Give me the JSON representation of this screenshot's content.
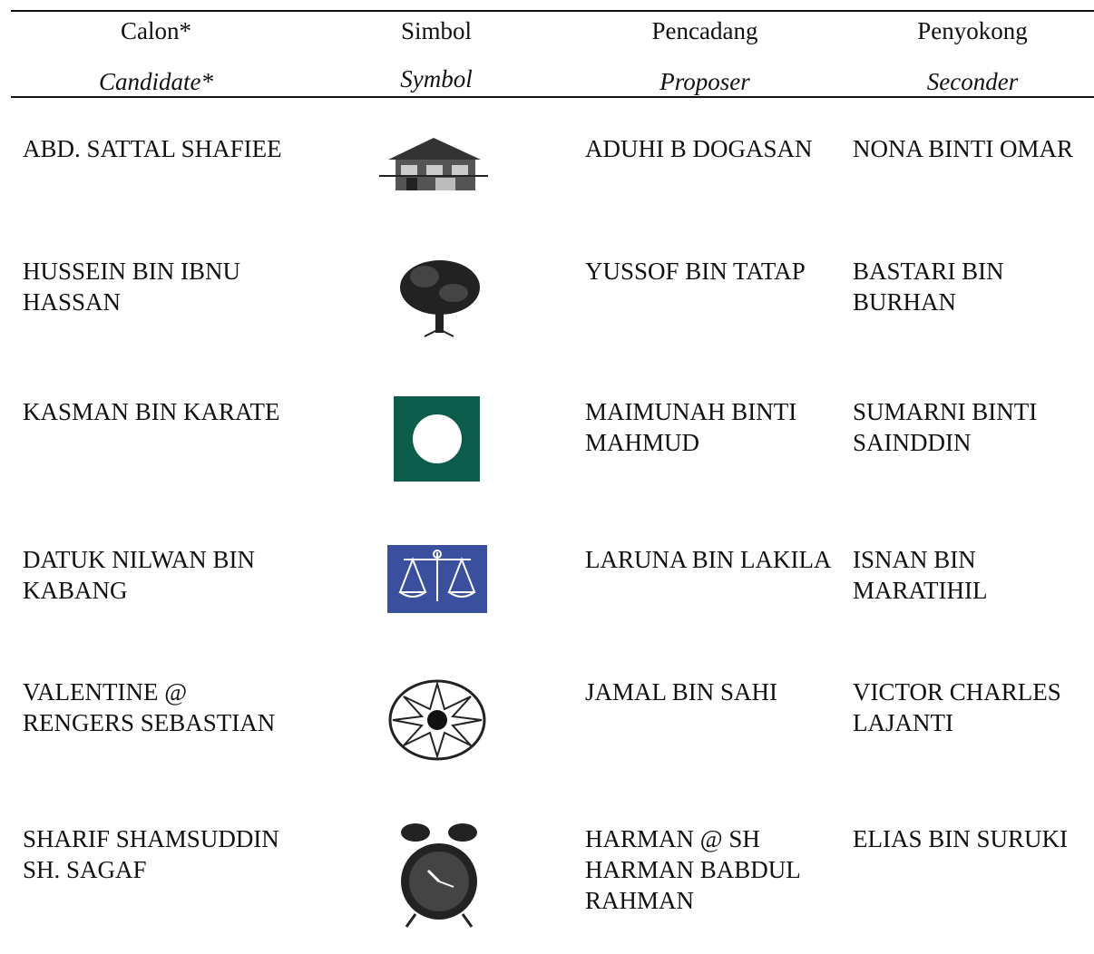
{
  "table": {
    "header": [
      {
        "label": "Calon*",
        "label_en": "Candidate*"
      },
      {
        "label": "Simbol",
        "label_en": "Symbol"
      },
      {
        "label": "Pencadang",
        "label_en": "Proposer"
      },
      {
        "label": "Penyokong",
        "label_en": "Seconder"
      }
    ],
    "rows": [
      {
        "candidate": [
          "ABD. SATTAL SHAFIEE"
        ],
        "proposer": [
          "ADUHI B DOGASAN"
        ],
        "seconder": [
          "NONA BINTI OMAR"
        ]
      },
      {
        "candidate": [
          "HUSSEIN BIN IBNU",
          "HASSAN"
        ],
        "proposer": [
          "YUSSOF BIN TATAP"
        ],
        "seconder": [
          "BASTARI BIN",
          "BURHAN"
        ]
      },
      {
        "candidate": [
          "KASMAN BIN KARATE"
        ],
        "proposer": [
          "MAIMUNAH BINTI",
          "MAHMUD"
        ],
        "seconder": [
          "SUMARNI BINTI",
          "SAINDDIN"
        ]
      },
      {
        "candidate": [
          "DATUK NILWAN BIN",
          "KABANG"
        ],
        "proposer": [
          "LARUNA BIN LAKILA"
        ],
        "seconder": [
          "ISNAN BIN",
          "MARATIHIL"
        ]
      },
      {
        "candidate": [
          "VALENTINE @",
          "RENGERS SEBASTIAN"
        ],
        "proposer": [
          "JAMAL BIN SAHI"
        ],
        "seconder": [
          "VICTOR CHARLES",
          "LAJANTI"
        ]
      },
      {
        "candidate": [
          "SHARIF SHAMSUDDIN",
          "SH. SAGAF"
        ],
        "proposer": [
          "HARMAN @ SH",
          "HARMAN BABDUL",
          "RAHMAN"
        ],
        "seconder": [
          "ELIAS BIN SURUKI"
        ]
      }
    ]
  }
}
